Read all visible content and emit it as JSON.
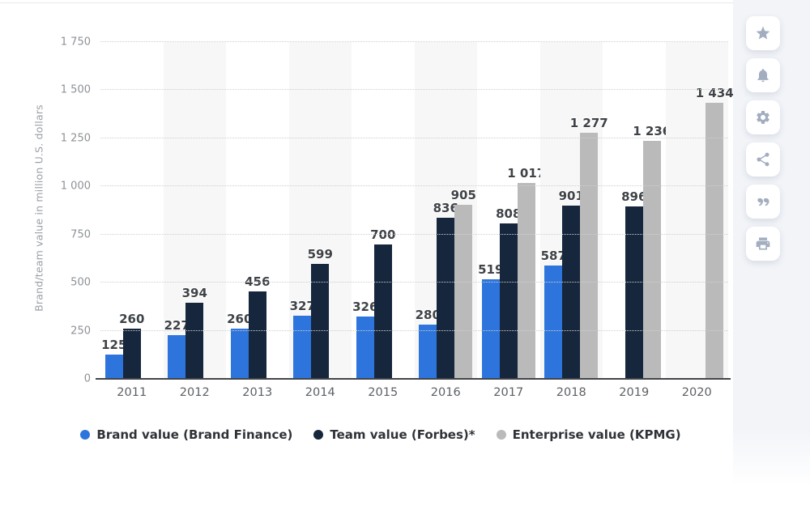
{
  "chart_data": {
    "type": "bar",
    "title": "",
    "ylabel": "Brand/team value in million U.S. dollars",
    "ylim": [
      0,
      1750
    ],
    "ytick_step": 250,
    "ytick_labels": [
      "0",
      "250",
      "500",
      "750",
      "1 000",
      "1 250",
      "1 500",
      "1 750"
    ],
    "categories": [
      "2011",
      "2012",
      "2013",
      "2014",
      "2015",
      "2016",
      "2017",
      "2018",
      "2019",
      "2020"
    ],
    "series": [
      {
        "name": "Brand value (Brand Finance)",
        "color": "#2d75dc",
        "values": [
          125,
          227,
          260,
          327,
          326,
          280,
          519,
          587,
          null,
          null
        ]
      },
      {
        "name": "Team value (Forbes)*",
        "color": "#16263c",
        "values": [
          260,
          394,
          456,
          599,
          700,
          836,
          808,
          901,
          896,
          null
        ]
      },
      {
        "name": "Enterprise value (KPMG)",
        "color": "#bababa",
        "values": [
          null,
          null,
          null,
          null,
          null,
          905,
          1017,
          1277,
          1236,
          1434
        ]
      }
    ],
    "grid": "horizontal-dotted",
    "legend_position": "bottom",
    "plot_band_color": "#f7f7f7",
    "axis_line_color": "#424549"
  },
  "sidebar": {
    "icons": [
      {
        "name": "star"
      },
      {
        "name": "bell"
      },
      {
        "name": "gear"
      },
      {
        "name": "share"
      },
      {
        "name": "quote"
      },
      {
        "name": "print"
      }
    ]
  }
}
